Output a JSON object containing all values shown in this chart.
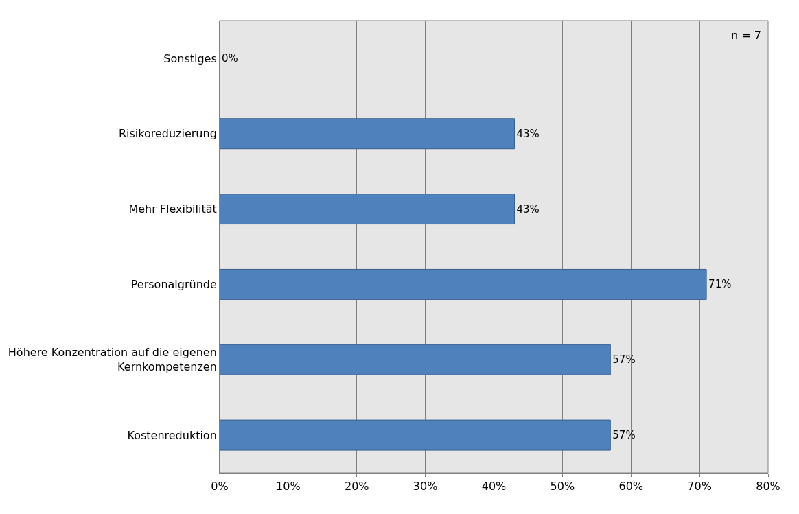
{
  "chart_data": {
    "type": "bar",
    "orientation": "horizontal",
    "categories": [
      "Sonstiges",
      "Risikoreduzierung",
      "Mehr Flexibilität",
      "Personalgründe",
      "Höhere Konzentration auf die eigenen Kernkompetenzen",
      "Kostenreduktion"
    ],
    "values": [
      0,
      43,
      43,
      71,
      57,
      57
    ],
    "value_labels": [
      "0%",
      "43%",
      "43%",
      "71%",
      "57%",
      "57%"
    ],
    "color": "#4f81bd",
    "xlim": [
      0,
      80
    ],
    "xticks": [
      {
        "value": 0,
        "label": "0%"
      },
      {
        "value": 10,
        "label": "10%"
      },
      {
        "value": 20,
        "label": "20%"
      },
      {
        "value": 30,
        "label": "30%"
      },
      {
        "value": 40,
        "label": "40%"
      },
      {
        "value": 50,
        "label": "50%"
      },
      {
        "value": 60,
        "label": "60%"
      },
      {
        "value": 70,
        "label": "70%"
      },
      {
        "value": 80,
        "label": "80%"
      }
    ],
    "grid": "x",
    "legend": false,
    "annotations": [
      "n = 7"
    ]
  }
}
